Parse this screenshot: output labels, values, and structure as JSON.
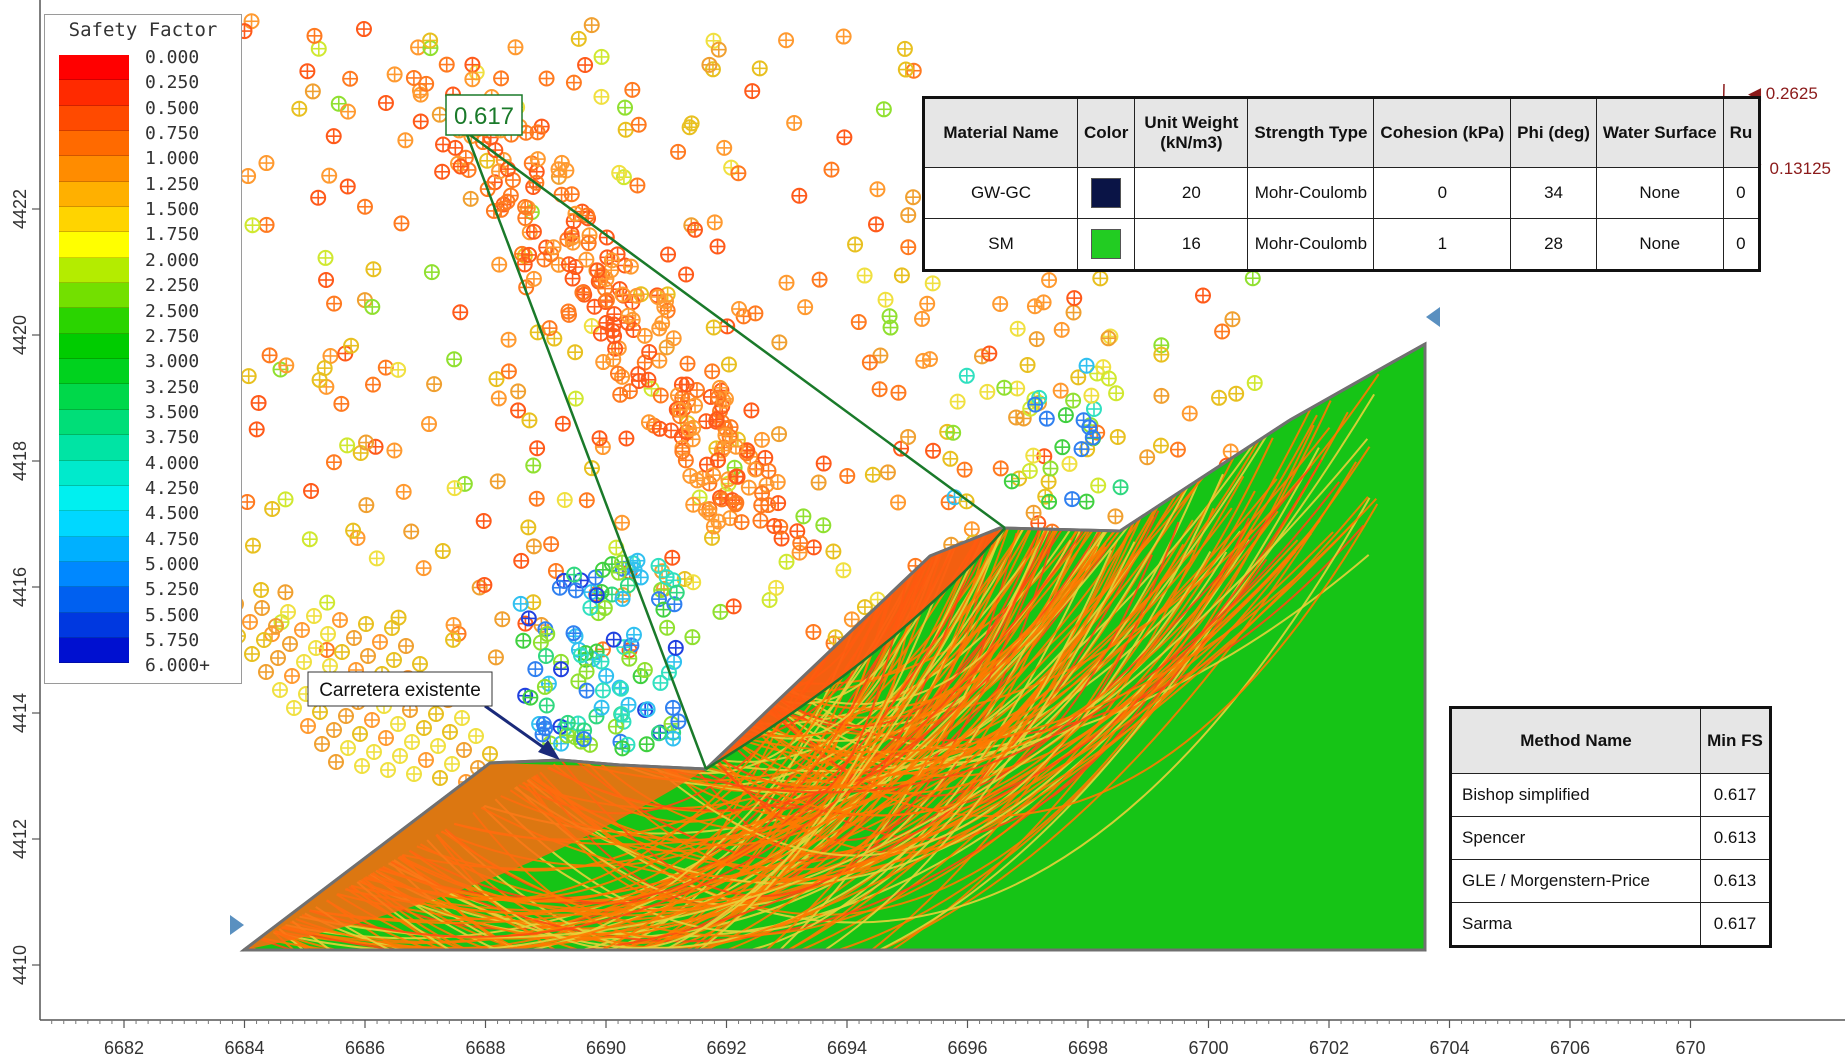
{
  "legend": {
    "title": "Safety Factor",
    "labels": [
      "0.000",
      "0.250",
      "0.500",
      "0.750",
      "1.000",
      "1.250",
      "1.500",
      "1.750",
      "2.000",
      "2.250",
      "2.500",
      "2.750",
      "3.000",
      "3.250",
      "3.500",
      "3.750",
      "4.000",
      "4.250",
      "4.500",
      "4.750",
      "5.000",
      "5.250",
      "5.500",
      "5.750",
      "6.000+"
    ],
    "colors": [
      "#ff0000",
      "#ff2a00",
      "#ff4a00",
      "#ff6a00",
      "#ff8c00",
      "#ffb000",
      "#ffd400",
      "#ffff00",
      "#b4ec00",
      "#73e000",
      "#2ad400",
      "#00cc00",
      "#00d21e",
      "#00d84a",
      "#00de78",
      "#00e4a4",
      "#00eacc",
      "#00f0f0",
      "#00d8ff",
      "#00b0ff",
      "#0088ff",
      "#0060f0",
      "#0038e0",
      "#0010d0"
    ]
  },
  "axes": {
    "x_ticks": [
      "6682",
      "6684",
      "6686",
      "6688",
      "6690",
      "6692",
      "6694",
      "6696",
      "6698",
      "6700",
      "6702",
      "6704",
      "6706",
      "670"
    ],
    "y_ticks": [
      "4410",
      "4412",
      "4414",
      "4416",
      "4418",
      "4420",
      "4422"
    ]
  },
  "critical_label": "0.617",
  "road_label": "Carretera existente",
  "seismic": {
    "max": "◀ 0.2625",
    "min": "▼ 0.13125",
    "color": "#8b1a1a"
  },
  "materials": {
    "headers": [
      "Material Name",
      "Color",
      "Unit Weight (kN/m3)",
      "Strength Type",
      "Cohesion (kPa)",
      "Phi (deg)",
      "Water Surface",
      "Ru"
    ],
    "rows": [
      {
        "name": "GW-GC",
        "color": "#0a1446",
        "unit_weight": "20",
        "strength": "Mohr-Coulomb",
        "cohesion": "0",
        "phi": "34",
        "water": "None",
        "ru": "0"
      },
      {
        "name": "SM",
        "color": "#22cc22",
        "unit_weight": "16",
        "strength": "Mohr-Coulomb",
        "cohesion": "1",
        "phi": "28",
        "water": "None",
        "ru": "0"
      }
    ]
  },
  "methods": {
    "headers": [
      "Method Name",
      "Min FS"
    ],
    "rows": [
      {
        "name": "Bishop simplified",
        "fs": "0.617"
      },
      {
        "name": "Spencer",
        "fs": "0.613"
      },
      {
        "name": "GLE / Morgenstern-Price",
        "fs": "0.613"
      },
      {
        "name": "Sarma",
        "fs": "0.617"
      }
    ]
  },
  "colors": {
    "slope_fill": "#16c416",
    "slip_surface_orange": "#ff7a00",
    "slip_surface_red": "#ff4a10",
    "slip_surface_yellow": "#e8d23a",
    "critical_line": "#1a7a2a",
    "boundary_marker": "#5a90c0"
  }
}
